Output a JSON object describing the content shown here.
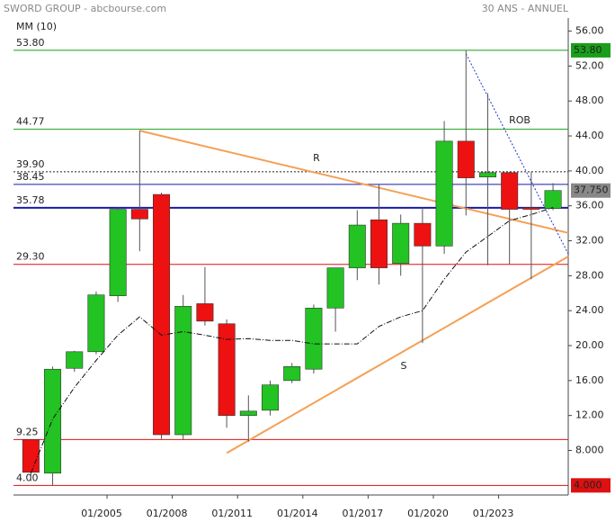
{
  "chart_data": {
    "type": "candlestick",
    "source": "SWORD GROUP - abcbourse.com",
    "period": "30 ANS - ANNUEL",
    "indicator": "MM (10)",
    "x": [
      2001,
      2002,
      2003,
      2004,
      2005,
      2006,
      2007,
      2008,
      2009,
      2010,
      2011,
      2012,
      2013,
      2014,
      2015,
      2016,
      2017,
      2018,
      2019,
      2020,
      2021,
      2022,
      2023,
      2024,
      2025
    ],
    "open": [
      9.25,
      5.4,
      17.4,
      19.3,
      25.7,
      35.6,
      37.3,
      9.8,
      24.8,
      22.5,
      12.0,
      12.6,
      16.0,
      17.3,
      24.3,
      28.9,
      34.4,
      29.4,
      34.0,
      31.4,
      43.4,
      39.3,
      39.8,
      35.8,
      35.7
    ],
    "high": [
      9.3,
      17.6,
      19.4,
      26.2,
      35.8,
      44.6,
      37.5,
      25.8,
      29.0,
      23.0,
      14.3,
      16.0,
      18.0,
      24.7,
      28.9,
      35.5,
      38.5,
      35.0,
      35.8,
      45.7,
      53.8,
      48.9,
      39.9,
      39.9,
      38.6
    ],
    "low": [
      4.5,
      4.0,
      17.0,
      19.0,
      25.0,
      30.8,
      9.3,
      9.2,
      22.3,
      10.6,
      9.0,
      12.0,
      15.7,
      16.8,
      21.6,
      27.5,
      27.0,
      28.0,
      20.3,
      30.5,
      34.9,
      29.2,
      29.3,
      27.6,
      35.5
    ],
    "close": [
      5.5,
      17.3,
      19.3,
      25.8,
      35.6,
      34.5,
      9.8,
      24.5,
      22.8,
      12.0,
      12.5,
      15.5,
      17.6,
      24.3,
      28.9,
      33.8,
      28.9,
      34.0,
      31.4,
      43.4,
      39.2,
      39.8,
      35.6,
      35.6,
      37.75
    ],
    "up_color": "#22c322",
    "down_color": "#ee1111",
    "ma": {
      "color": "#111111",
      "values": [
        5.4,
        11.6,
        15.2,
        18.3,
        21.2,
        23.3,
        21.2,
        21.6,
        21.2,
        20.7,
        20.8,
        20.6,
        20.6,
        20.2,
        20.2,
        20.2,
        22.2,
        23.3,
        24.0,
        27.6,
        30.7,
        32.5,
        34.3,
        35.0,
        35.8
      ]
    },
    "levels": [
      {
        "value": 53.8,
        "label": "53.80",
        "color": "#1a9e1a",
        "style": "solid"
      },
      {
        "value": 44.77,
        "label": "44.77",
        "color": "#1a9e1a",
        "style": "solid"
      },
      {
        "value": 39.9,
        "label": "39.90",
        "color": "#222222",
        "style": "dotted"
      },
      {
        "value": 38.45,
        "label": "38.45",
        "color": "#1a1aa8",
        "style": "solid"
      },
      {
        "value": 35.78,
        "label": "35.78",
        "color": "#1a1aa8",
        "style": "thick"
      },
      {
        "value": 29.3,
        "label": "29.30",
        "color": "#dd1111",
        "style": "solid"
      },
      {
        "value": 9.25,
        "label": "9.25",
        "color": "#dd1111",
        "style": "solid"
      },
      {
        "value": 4.0,
        "label": "4.00",
        "color": "#dd1111",
        "style": "solid"
      }
    ],
    "price_tags": [
      {
        "value": 53.8,
        "label": "53.80",
        "color": "#1a9e1a"
      },
      {
        "value": 37.75,
        "label": "37.750",
        "color": "#888888"
      },
      {
        "value": 4.0,
        "label": "4.000",
        "color": "#dd1111"
      }
    ],
    "trend_lines": [
      {
        "name": "R",
        "color": "#f5a055",
        "style": "solid",
        "x": [
          2006.5,
          2026.2
        ],
        "y": [
          44.6,
          32.9
        ]
      },
      {
        "name": "S",
        "color": "#f5a055",
        "style": "solid",
        "x": [
          2010.5,
          2026.2
        ],
        "y": [
          7.7,
          30.2
        ]
      },
      {
        "name": "ROB",
        "color": "#2233cc",
        "style": "dotted",
        "x": [
          2021.5,
          2026.2
        ],
        "y": [
          53.4,
          30.5
        ]
      }
    ],
    "xlim": [
      2000.7,
      2026.2
    ],
    "ylim": [
      2.9,
      57.5
    ],
    "xticks": [
      {
        "value": 2005,
        "label": "01/2005"
      },
      {
        "value": 2008,
        "label": "01/2008"
      },
      {
        "value": 2011,
        "label": "01/2011"
      },
      {
        "value": 2014,
        "label": "01/2014"
      },
      {
        "value": 2017,
        "label": "01/2017"
      },
      {
        "value": 2020,
        "label": "01/2020"
      },
      {
        "value": 2023,
        "label": "01/2023"
      }
    ],
    "yticks": [
      {
        "value": 56,
        "label": "56.00"
      },
      {
        "value": 52,
        "label": "52.00"
      },
      {
        "value": 48,
        "label": "48.00"
      },
      {
        "value": 44,
        "label": "44.00"
      },
      {
        "value": 40,
        "label": "40.00"
      },
      {
        "value": 36,
        "label": "36.00"
      },
      {
        "value": 32,
        "label": "32.00"
      },
      {
        "value": 28,
        "label": "28.00"
      },
      {
        "value": 24,
        "label": "24.00"
      },
      {
        "value": 20,
        "label": "20.00"
      },
      {
        "value": 16,
        "label": "16.00"
      },
      {
        "value": 12,
        "label": "12.00"
      },
      {
        "value": 8,
        "label": "8.000"
      }
    ]
  }
}
